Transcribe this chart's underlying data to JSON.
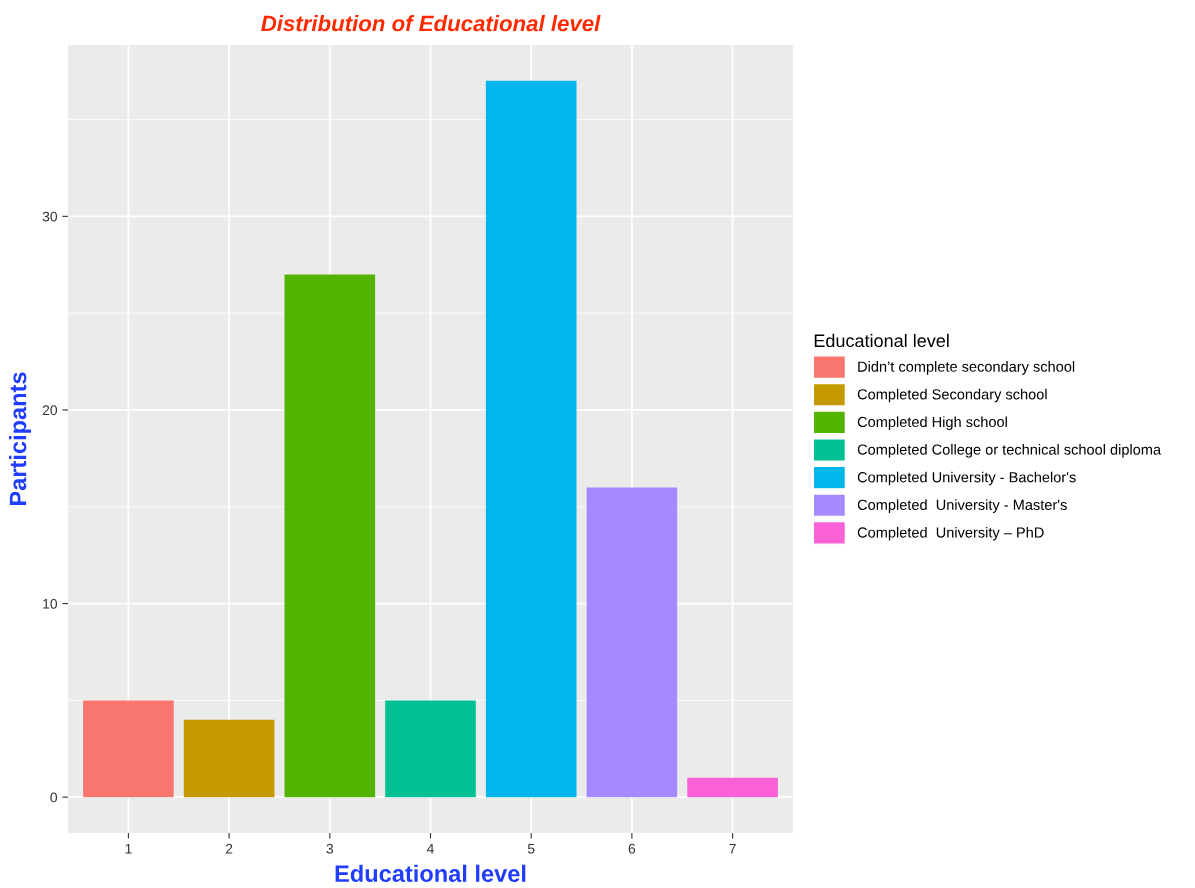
{
  "chart_data": {
    "type": "bar",
    "title": "Distribution of Educational level",
    "xlabel": "Educational level",
    "ylabel": "Participants",
    "legend_title": "Educational level",
    "categories": [
      "1",
      "2",
      "3",
      "4",
      "5",
      "6",
      "7"
    ],
    "series": [
      {
        "name": "Didn’t complete secondary school",
        "color": "#f8766d",
        "values": [
          5,
          null,
          null,
          null,
          null,
          null,
          null
        ]
      },
      {
        "name": "Completed Secondary school",
        "color": "#c49a00",
        "values": [
          null,
          4,
          null,
          null,
          null,
          null,
          null
        ]
      },
      {
        "name": "Completed High school",
        "color": "#53b400",
        "values": [
          null,
          null,
          27,
          null,
          null,
          null,
          null
        ]
      },
      {
        "name": "Completed College or technical school diploma",
        "color": "#00c094",
        "values": [
          null,
          null,
          null,
          5,
          null,
          null,
          null
        ]
      },
      {
        "name": "Completed University - Bachelor's",
        "color": "#00b6eb",
        "values": [
          null,
          null,
          null,
          null,
          37,
          null,
          null
        ]
      },
      {
        "name": "Completed  University - Master's",
        "color": "#a58aff",
        "values": [
          null,
          null,
          null,
          null,
          null,
          16,
          null
        ]
      },
      {
        "name": "Completed  University – PhD",
        "color": "#fb61d7",
        "values": [
          null,
          null,
          null,
          null,
          null,
          null,
          1
        ]
      }
    ],
    "ylim": [
      -1.85,
      38.85
    ],
    "yticks": [
      0,
      10,
      20,
      30
    ],
    "grid": true,
    "legend": "right"
  }
}
